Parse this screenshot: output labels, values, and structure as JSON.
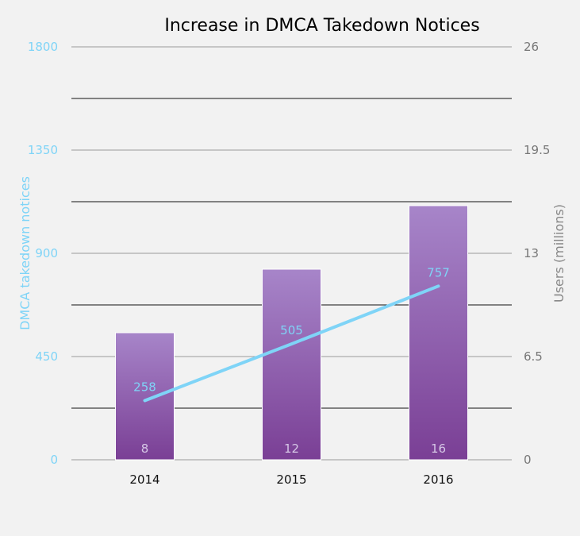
{
  "chart_data": {
    "type": "bar",
    "title": "Increase in DMCA Takedown Notices",
    "categories": [
      "2014",
      "2015",
      "2016"
    ],
    "series": [
      {
        "axis": "right",
        "type": "bar",
        "values": [
          8,
          12,
          16
        ],
        "data_labels": [
          "8",
          "12",
          "16"
        ]
      },
      {
        "axis": "left",
        "type": "line",
        "values": [
          258,
          505,
          757
        ],
        "data_labels": [
          "258",
          "505",
          "757"
        ]
      }
    ],
    "ylabel_left": "DMCA takedown notices",
    "ylabel_right": "Users (millions)",
    "ylim_left": [
      0,
      1800
    ],
    "ylim_right": [
      0,
      26
    ],
    "yticks_left": [
      "0",
      "450",
      "900",
      "1350",
      "1800"
    ],
    "yticks_right": [
      "0",
      "6.5",
      "13",
      "19.5",
      "26"
    ],
    "grid": true,
    "colors": {
      "bar_top": "#a785c9",
      "bar_bottom": "#7a3f95",
      "line": "#7fd4f7",
      "left_axis_text": "#7fd4f7",
      "right_axis_text": "#777777",
      "background": "#f2f2f2"
    }
  }
}
